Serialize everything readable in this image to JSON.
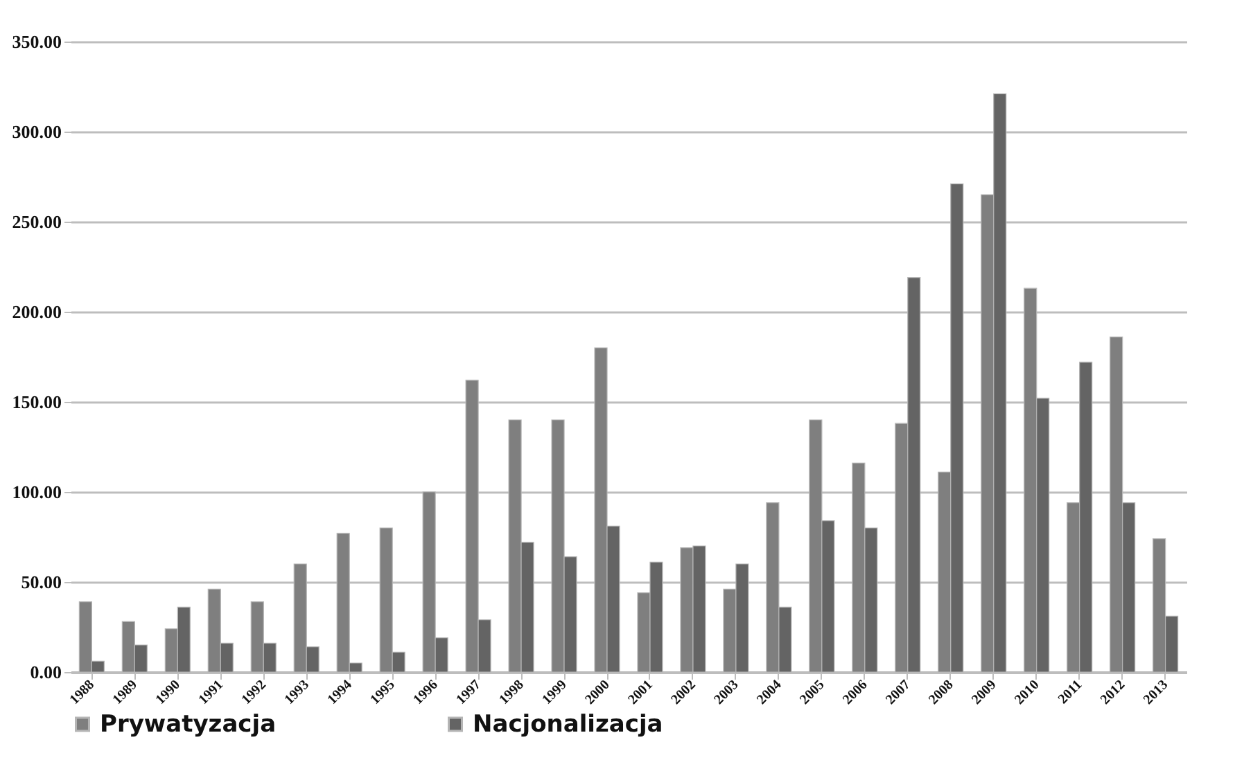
{
  "chart_data": {
    "type": "bar",
    "categories": [
      "1988",
      "1989",
      "1990",
      "1991",
      "1992",
      "1993",
      "1994",
      "1995",
      "1996",
      "1997",
      "1998",
      "1999",
      "2000",
      "2001",
      "2002",
      "2003",
      "2004",
      "2005",
      "2006",
      "2007",
      "2008",
      "2009",
      "2010",
      "2011",
      "2012",
      "2013"
    ],
    "series": [
      {
        "name": "Prywatyzacja",
        "color": "#7f7f7f",
        "values": [
          39,
          28,
          24,
          46,
          39,
          60,
          77,
          80,
          100,
          162,
          140,
          140,
          180,
          44,
          69,
          46,
          94,
          140,
          116,
          138,
          111,
          265,
          213,
          94,
          186,
          74
        ]
      },
      {
        "name": "Nacjonalizacja",
        "color": "#646464",
        "values": [
          6,
          15,
          36,
          16,
          16,
          14,
          5,
          11,
          19,
          29,
          72,
          64,
          81,
          61,
          70,
          60,
          36,
          84,
          80,
          219,
          271,
          321,
          152,
          172,
          94,
          31
        ]
      }
    ],
    "ylim": [
      0,
      350
    ],
    "yticks": [
      {
        "value": 0,
        "label": "0.00"
      },
      {
        "value": 50,
        "label": "50.00"
      },
      {
        "value": 100,
        "label": "100.00"
      },
      {
        "value": 150,
        "label": "150.00"
      },
      {
        "value": 200,
        "label": "200.00"
      },
      {
        "value": 250,
        "label": "250.00"
      },
      {
        "value": 300,
        "label": "300.00"
      },
      {
        "value": 350,
        "label": "350.00"
      }
    ],
    "grid": "y",
    "legend": "bottom"
  }
}
